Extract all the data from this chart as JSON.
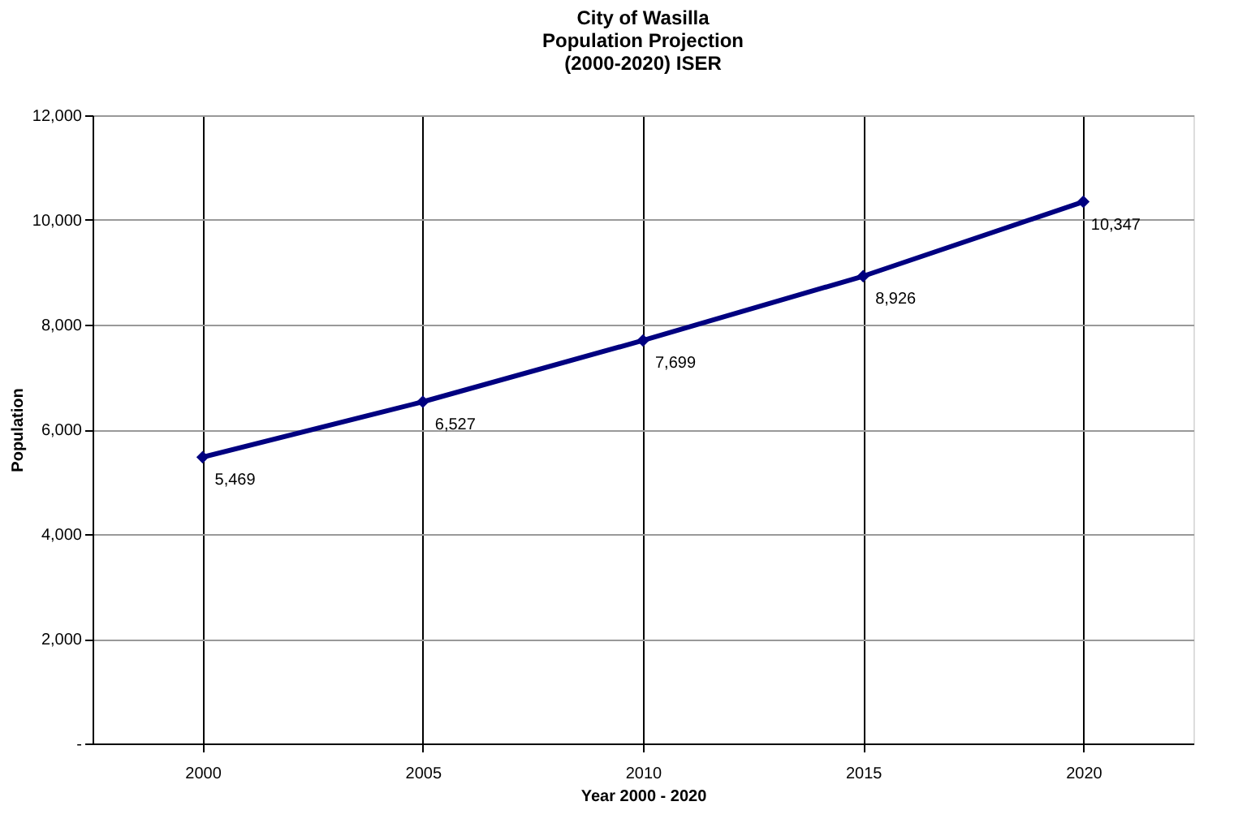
{
  "chart_data": {
    "type": "line",
    "title": "City of Wasilla\nPopulation Projection\n(2000-2020) ISER",
    "xlabel": "Year 2000 - 2020",
    "ylabel": "Population",
    "categories": [
      "2000",
      "2005",
      "2010",
      "2015",
      "2020"
    ],
    "series": [
      {
        "color": "#000080",
        "values": [
          5469,
          6527,
          7699,
          8926,
          10347
        ],
        "value_labels": [
          "5,469",
          "6,527",
          "7,699",
          "8,926",
          "10,347"
        ]
      }
    ],
    "ylim": [
      0,
      12000
    ],
    "yticks": [
      {
        "value": 0,
        "label": "-"
      },
      {
        "value": 2000,
        "label": "2,000"
      },
      {
        "value": 4000,
        "label": "4,000"
      },
      {
        "value": 6000,
        "label": "6,000"
      },
      {
        "value": 8000,
        "label": "8,000"
      },
      {
        "value": 10000,
        "label": "10,000"
      },
      {
        "value": 12000,
        "label": "12,000"
      }
    ],
    "grid": true,
    "marker": "diamond",
    "line_style": "solid"
  }
}
